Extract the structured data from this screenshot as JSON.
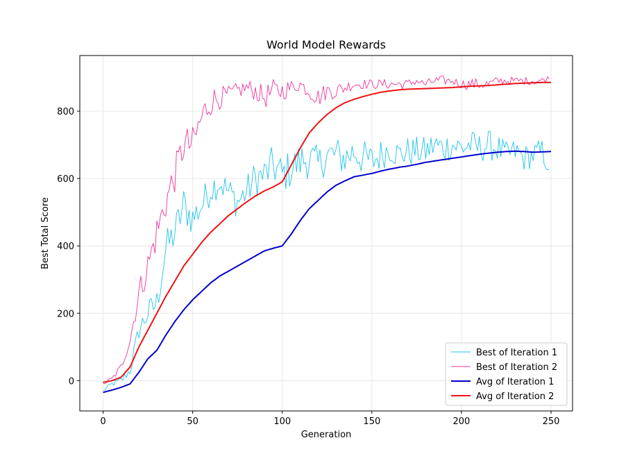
{
  "chart_data": {
    "type": "line",
    "title": "World Model Rewards",
    "xlabel": "Generation",
    "ylabel": "Best Total Score",
    "xlim": [
      -13,
      262
    ],
    "ylim": [
      -90,
      965
    ],
    "x_ticks": [
      0,
      50,
      100,
      150,
      200,
      250
    ],
    "y_ticks": [
      0,
      200,
      400,
      600,
      800
    ],
    "grid": true,
    "legend_position": "lower-right",
    "series": [
      {
        "name": "Best of Iteration 1",
        "color": "#1fc3ea",
        "kind": "noisy",
        "x": [
          0,
          5,
          10,
          15,
          20,
          25,
          30,
          35,
          40,
          45,
          50,
          55,
          60,
          65,
          70,
          75,
          80,
          85,
          90,
          95,
          100,
          105,
          110,
          115,
          120,
          125,
          130,
          135,
          140,
          145,
          150,
          155,
          160,
          165,
          170,
          175,
          180,
          185,
          190,
          195,
          200,
          205,
          210,
          215,
          220,
          225,
          230,
          235,
          240,
          245,
          249
        ],
        "y": [
          -30,
          -10,
          0,
          30,
          150,
          200,
          230,
          390,
          440,
          520,
          480,
          520,
          570,
          590,
          560,
          530,
          560,
          600,
          610,
          640,
          610,
          630,
          650,
          660,
          640,
          670,
          670,
          660,
          680,
          660,
          650,
          670,
          690,
          670,
          680,
          680,
          680,
          700,
          690,
          700,
          690,
          700,
          690,
          700,
          690,
          670,
          680,
          660,
          670,
          680,
          620
        ],
        "amplitude": [
          5,
          8,
          12,
          18,
          30,
          40,
          45,
          55,
          55,
          60,
          55,
          50,
          50,
          45,
          50,
          50,
          50,
          55,
          55,
          60,
          60,
          60,
          60,
          60,
          55,
          55,
          55,
          55,
          55,
          55,
          55,
          50,
          45,
          45,
          45,
          45,
          45,
          45,
          45,
          45,
          45,
          45,
          45,
          45,
          45,
          40,
          40,
          40,
          40,
          40,
          10
        ]
      },
      {
        "name": "Best of Iteration 2",
        "color": "#ee3399",
        "kind": "noisy",
        "x": [
          0,
          5,
          10,
          15,
          20,
          25,
          30,
          35,
          40,
          45,
          50,
          55,
          60,
          65,
          70,
          75,
          80,
          85,
          90,
          95,
          100,
          105,
          110,
          115,
          120,
          125,
          130,
          135,
          140,
          145,
          150,
          155,
          160,
          165,
          170,
          175,
          180,
          185,
          190,
          195,
          200,
          205,
          210,
          215,
          220,
          225,
          230,
          235,
          240,
          245,
          249
        ],
        "y": [
          -10,
          5,
          40,
          120,
          260,
          340,
          440,
          530,
          610,
          700,
          700,
          780,
          830,
          840,
          850,
          860,
          870,
          860,
          840,
          860,
          860,
          870,
          880,
          860,
          840,
          860,
          860,
          870,
          880,
          880,
          880,
          880,
          880,
          880,
          880,
          890,
          880,
          890,
          890,
          890,
          880,
          880,
          880,
          880,
          890,
          890,
          890,
          890,
          890,
          890,
          900
        ],
        "amplitude": [
          5,
          8,
          12,
          20,
          40,
          50,
          55,
          55,
          55,
          55,
          55,
          55,
          45,
          35,
          25,
          25,
          25,
          30,
          35,
          35,
          30,
          25,
          20,
          25,
          30,
          25,
          25,
          20,
          15,
          15,
          15,
          15,
          15,
          15,
          15,
          12,
          12,
          15,
          15,
          12,
          15,
          18,
          18,
          15,
          12,
          12,
          12,
          12,
          12,
          12,
          5
        ]
      },
      {
        "name": "Avg of Iteration 1",
        "color": "#0000cc",
        "kind": "smooth",
        "x": [
          0,
          5,
          10,
          15,
          20,
          25,
          30,
          35,
          40,
          45,
          50,
          55,
          60,
          65,
          70,
          75,
          80,
          85,
          90,
          95,
          100,
          105,
          110,
          115,
          120,
          125,
          130,
          135,
          140,
          145,
          150,
          155,
          160,
          165,
          170,
          175,
          180,
          185,
          190,
          195,
          200,
          205,
          210,
          215,
          220,
          225,
          230,
          235,
          240,
          245,
          250
        ],
        "y": [
          -35,
          -28,
          -20,
          -10,
          25,
          65,
          90,
          135,
          175,
          210,
          240,
          265,
          290,
          310,
          325,
          340,
          355,
          370,
          385,
          393,
          400,
          435,
          475,
          510,
          535,
          560,
          580,
          593,
          605,
          610,
          615,
          622,
          628,
          633,
          637,
          642,
          648,
          652,
          656,
          660,
          664,
          668,
          672,
          675,
          678,
          680,
          681,
          680,
          678,
          679,
          680
        ]
      },
      {
        "name": "Avg of Iteration 2",
        "color": "#ee1111",
        "kind": "smooth",
        "x": [
          0,
          5,
          10,
          15,
          20,
          25,
          30,
          35,
          40,
          45,
          50,
          55,
          60,
          65,
          70,
          75,
          80,
          85,
          90,
          95,
          100,
          105,
          110,
          115,
          120,
          125,
          130,
          135,
          140,
          145,
          150,
          155,
          160,
          165,
          170,
          175,
          180,
          185,
          190,
          195,
          200,
          205,
          210,
          215,
          220,
          225,
          230,
          235,
          240,
          245,
          250
        ],
        "y": [
          -5,
          0,
          10,
          40,
          100,
          150,
          200,
          250,
          295,
          340,
          375,
          410,
          440,
          465,
          490,
          510,
          530,
          548,
          563,
          575,
          590,
          640,
          690,
          735,
          765,
          790,
          810,
          825,
          835,
          843,
          850,
          856,
          860,
          863,
          865,
          866,
          867,
          868,
          869,
          870,
          872,
          874,
          875,
          876,
          878,
          880,
          882,
          883,
          884,
          885,
          885
        ]
      }
    ]
  }
}
